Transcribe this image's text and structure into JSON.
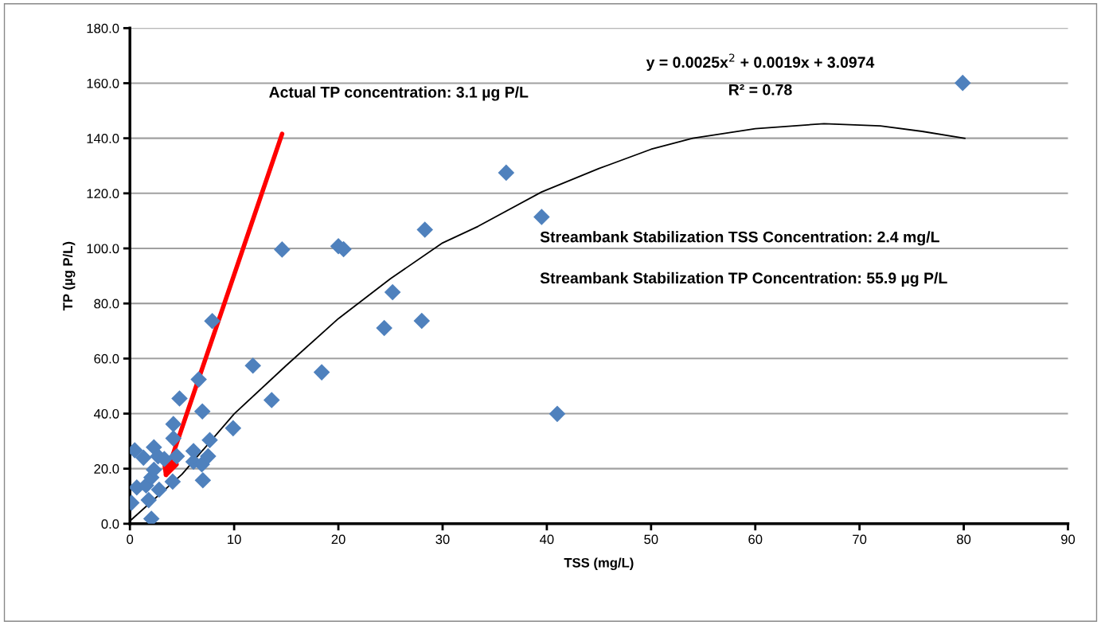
{
  "chart_data": {
    "type": "scatter",
    "xlabel": "TSS (mg/L)",
    "ylabel": "TP (µg P/L)",
    "series": [
      {
        "type": "scatter",
        "color": "#4f81bd",
        "marker": "diamond",
        "x": [
          0.15,
          0.46,
          0.66,
          1.3,
          1.55,
          1.8,
          2.06,
          2.06,
          2.3,
          2.3,
          2.7,
          2.8,
          3.3,
          4.1,
          4.17,
          4.17,
          4.5,
          4.76,
          6.1,
          6.1,
          6.6,
          6.9,
          6.95,
          7.0,
          7.5,
          7.66,
          7.9,
          9.9,
          11.8,
          13.6,
          14.6,
          18.4,
          20.0,
          20.5,
          24.4,
          25.2,
          28.0,
          28.3,
          36.1,
          39.5,
          41.0,
          79.9
        ],
        "values": [
          7.6,
          26.7,
          13.2,
          24.0,
          13.9,
          8.6,
          1.8,
          16.8,
          27.8,
          19.6,
          24.5,
          12.4,
          23.5,
          15.3,
          36.2,
          31.0,
          24.5,
          45.5,
          26.4,
          22.5,
          52.4,
          21.6,
          40.8,
          15.8,
          24.5,
          30.4,
          73.6,
          34.7,
          57.4,
          44.9,
          99.6,
          55.0,
          100.8,
          99.7,
          71.1,
          84.1,
          73.7,
          106.8,
          127.5,
          111.4,
          39.9,
          160.1
        ]
      },
      {
        "type": "line",
        "color": "#000000",
        "marker": "none",
        "line_style": "solid",
        "x": [
          0,
          5,
          10,
          15,
          20,
          25,
          30,
          33.4,
          39.5,
          45,
          50,
          54,
          60,
          66.6,
          72,
          76,
          80.1
        ],
        "values": [
          1,
          18,
          39.9,
          57.5,
          74.5,
          89,
          102,
          108,
          120.5,
          129,
          136,
          140,
          143.5,
          145.3,
          144.5,
          142.5,
          140
        ]
      }
    ],
    "xlim": [
      0,
      90
    ],
    "xticks": [
      0,
      10,
      20,
      30,
      40,
      50,
      60,
      70,
      80,
      90
    ],
    "ylim": [
      0,
      180
    ],
    "yticks": [
      {
        "value": 0,
        "label": "0.0"
      },
      {
        "value": 20,
        "label": "20.0"
      },
      {
        "value": 40,
        "label": "40.0"
      },
      {
        "value": 60,
        "label": "60.0"
      },
      {
        "value": 80,
        "label": "80.0"
      },
      {
        "value": 100,
        "label": "100.0"
      },
      {
        "value": 120,
        "label": "120.0"
      },
      {
        "value": 140,
        "label": "140.0"
      },
      {
        "value": 160,
        "label": "160.0"
      },
      {
        "value": 180,
        "label": "180.0"
      }
    ],
    "grid": "y",
    "legend": false,
    "annotations": [
      "Actual TP concentration: 3.1 µg P/L",
      "y = 0.0025x$^{2}$ + 0.0019x + 3.0974",
      "R² = 0.78",
      "Streambank Stabilization TSS Concentration: 2.4 mg/L",
      "Streambank Stabilization TP Concentration: 55.9 µg P/L"
    ]
  }
}
